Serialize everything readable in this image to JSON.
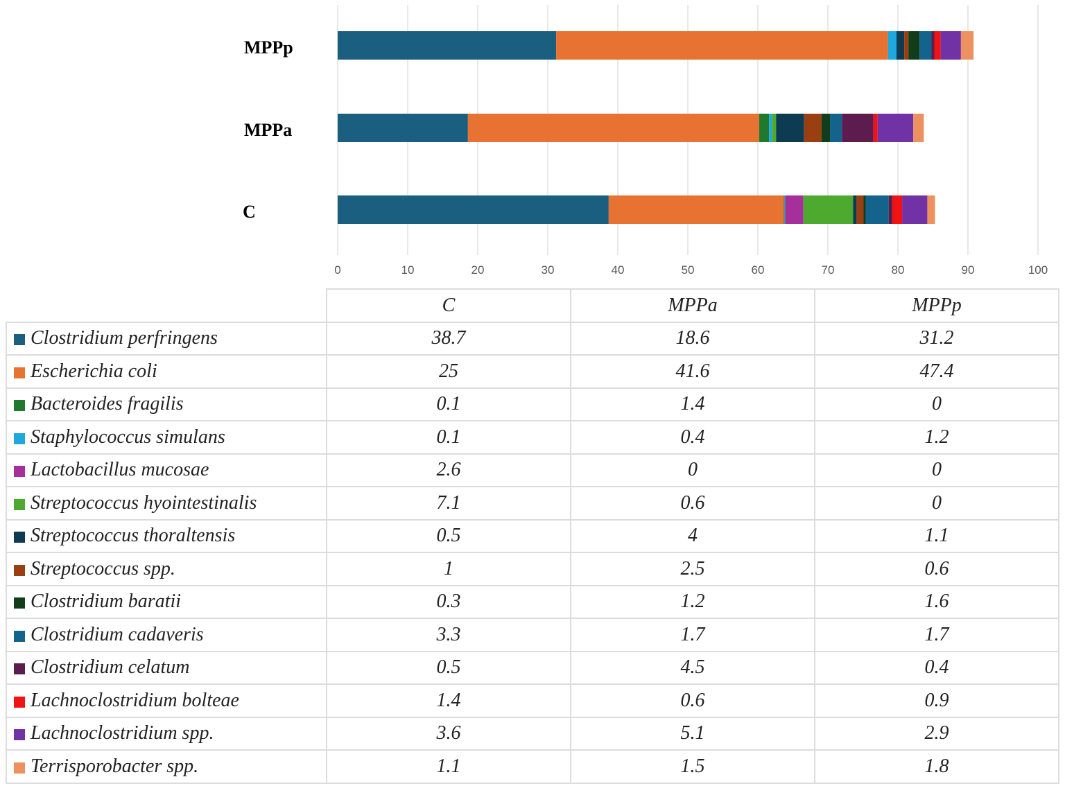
{
  "chart_data": {
    "type": "bar",
    "orientation": "horizontal",
    "stacked": true,
    "categories": [
      "C",
      "MPPa",
      "MPPp"
    ],
    "xlim": [
      0,
      100
    ],
    "xticks": [
      "0",
      "10",
      "20",
      "30",
      "40",
      "50",
      "60",
      "70",
      "80",
      "90",
      "100"
    ],
    "grid": true,
    "series": [
      {
        "name": "Clostridium perfringens",
        "color": "#1b5f80",
        "values": [
          38.7,
          18.6,
          31.2
        ],
        "labels": [
          "38.7",
          "18.6",
          "31.2"
        ]
      },
      {
        "name": "Escherichia coli",
        "color": "#e87232",
        "values": [
          25,
          41.6,
          47.4
        ],
        "labels": [
          "25",
          "41.6",
          "47.4"
        ]
      },
      {
        "name": "Bacteroides fragilis",
        "color": "#1f7a2e",
        "values": [
          0.1,
          1.4,
          0
        ],
        "labels": [
          "0.1",
          "1.4",
          "0"
        ]
      },
      {
        "name": "Staphylococcus simulans",
        "color": "#1ea8de",
        "values": [
          0.1,
          0.4,
          1.2
        ],
        "labels": [
          "0.1",
          "0.4",
          "1.2"
        ]
      },
      {
        "name": "Lactobacillus mucosae",
        "color": "#a5309c",
        "values": [
          2.6,
          0,
          0
        ],
        "labels": [
          "2.6",
          "0",
          "0"
        ]
      },
      {
        "name": "Streptococcus hyointestinalis",
        "color": "#4eaa2e",
        "values": [
          7.1,
          0.6,
          0
        ],
        "labels": [
          "7.1",
          "0.6",
          "0"
        ]
      },
      {
        "name": "Streptococcus thoraltensis",
        "color": "#0d3b52",
        "values": [
          0.5,
          4,
          1.1
        ],
        "labels": [
          "0.5",
          "4",
          "1.1"
        ]
      },
      {
        "name": "Streptococcus spp.",
        "color": "#9a3f12",
        "values": [
          1,
          2.5,
          0.6
        ],
        "labels": [
          "1",
          "2.5",
          "0.6"
        ]
      },
      {
        "name": "Clostridium baratii",
        "color": "#113d1a",
        "values": [
          0.3,
          1.2,
          1.6
        ],
        "labels": [
          "0.3",
          "1.2",
          "1.6"
        ]
      },
      {
        "name": "Clostridium cadaveris",
        "color": "#14638c",
        "values": [
          3.3,
          1.7,
          1.7
        ],
        "labels": [
          "3.3",
          "1.7",
          "1.7"
        ]
      },
      {
        "name": "Clostridium celatum",
        "color": "#5c1d4e",
        "values": [
          0.5,
          4.5,
          0.4
        ],
        "labels": [
          "0.5",
          "4.5",
          "0.4"
        ]
      },
      {
        "name": "Lachnoclostridium bolteae",
        "color": "#f01313",
        "values": [
          1.4,
          0.6,
          0.9
        ],
        "labels": [
          "1.4",
          "0.6",
          "0.9"
        ]
      },
      {
        "name": "Lachnoclostridium spp.",
        "color": "#7132a6",
        "values": [
          3.6,
          5.1,
          2.9
        ],
        "labels": [
          "3.6",
          "5.1",
          "2.9"
        ]
      },
      {
        "name": "Terrisporobacter spp.",
        "color": "#ee9160",
        "values": [
          1.1,
          1.5,
          1.8
        ],
        "labels": [
          "1.1",
          "1.5",
          "1.8"
        ]
      }
    ]
  }
}
